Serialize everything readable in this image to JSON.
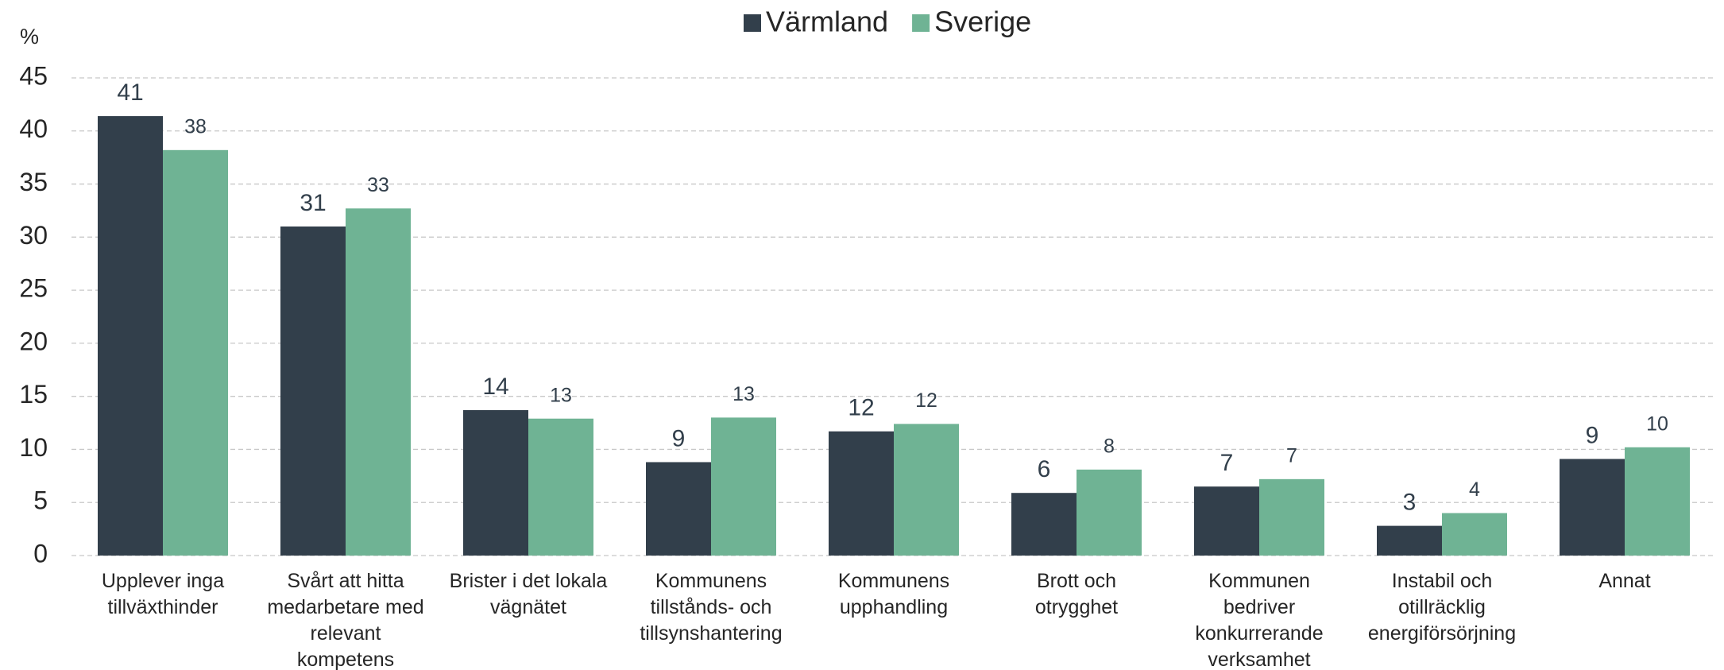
{
  "chart_data": {
    "type": "bar",
    "y_axis_label": "%",
    "categories": [
      "Upplever inga\ntillväxthinder",
      "Svårt att hitta\nmedarbetare med\nrelevant\nkompetens",
      "Brister i det lokala\nvägnätet",
      "Kommunens\ntillstånds- och\ntillsynshantering",
      "Kommunens\nupphandling",
      "Brott och\notrygghet",
      "Kommunen\nbedriver\nkonkurrerande\nverksamhet",
      "Instabil och\notillräcklig\nenergiförsörjning",
      "Annat"
    ],
    "series": [
      {
        "name": "Värmland",
        "color": "#323f4b",
        "values": [
          41.4,
          31.0,
          13.7,
          8.8,
          11.7,
          5.9,
          6.5,
          2.8,
          9.1
        ],
        "value_labels": [
          "41",
          "31",
          "14",
          "9",
          "12",
          "6",
          "7",
          "3",
          "9"
        ]
      },
      {
        "name": "Sverige",
        "color": "#6fb394",
        "values": [
          38.2,
          32.7,
          12.9,
          13.0,
          12.4,
          8.1,
          7.2,
          4.0,
          10.2
        ],
        "value_labels": [
          "38",
          "33",
          "13",
          "13",
          "12",
          "8",
          "7",
          "4",
          "10"
        ]
      }
    ],
    "ylim": [
      0,
      45
    ],
    "yticks": [
      0,
      5,
      10,
      15,
      20,
      25,
      30,
      35,
      40,
      45
    ],
    "grid": true,
    "legend": "top"
  }
}
